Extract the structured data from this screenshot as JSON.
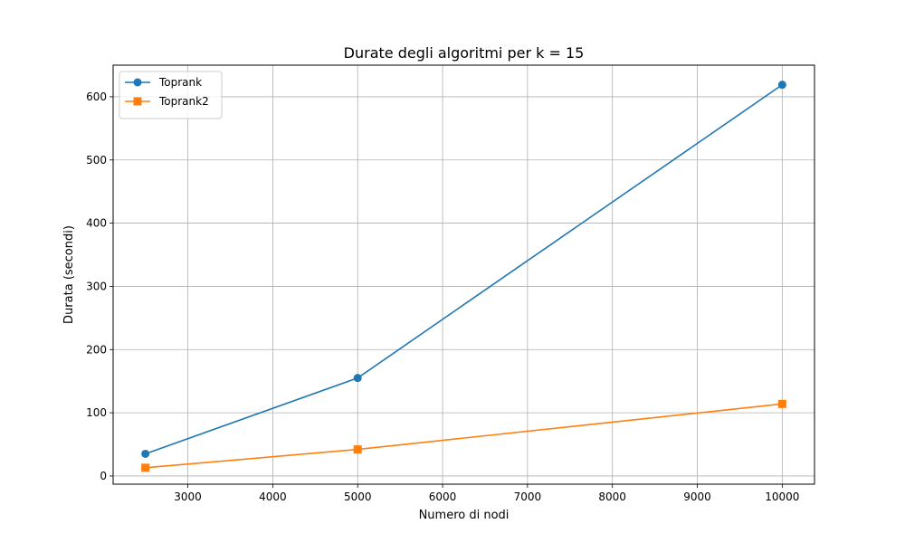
{
  "chart_data": {
    "type": "line",
    "title": "Durate degli algoritmi per k = 15",
    "xlabel": "Numero di nodi",
    "ylabel": "Durata (secondi)",
    "xlim": [
      2120,
      10380
    ],
    "ylim": [
      -13,
      650
    ],
    "xticks": [
      3000,
      4000,
      5000,
      6000,
      7000,
      8000,
      9000,
      10000
    ],
    "yticks": [
      0,
      100,
      200,
      300,
      400,
      500,
      600
    ],
    "grid": true,
    "legend_position": "top-left",
    "series": [
      {
        "name": "Toprank",
        "color": "#1f77b4",
        "marker": "circle",
        "x": [
          2500,
          5000,
          10000
        ],
        "y": [
          35,
          155,
          619
        ]
      },
      {
        "name": "Toprank2",
        "color": "#ff7f0e",
        "marker": "square",
        "x": [
          2500,
          5000,
          10000
        ],
        "y": [
          13,
          42,
          114
        ]
      }
    ]
  }
}
